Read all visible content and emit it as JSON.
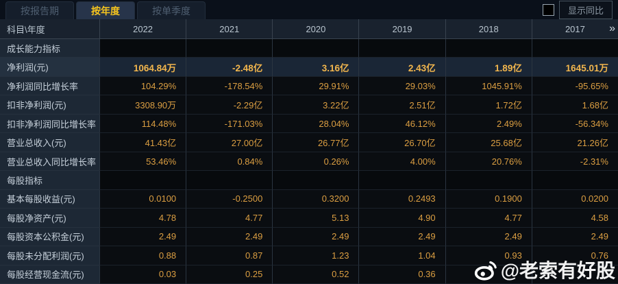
{
  "tabs": [
    {
      "label": "按报告期",
      "active": false
    },
    {
      "label": "按年度",
      "active": true
    },
    {
      "label": "按单季度",
      "active": false
    }
  ],
  "controls": {
    "show_yoy_label": "显示同比",
    "checkbox_checked": false
  },
  "table": {
    "corner_header": "科目\\年度",
    "year_columns": [
      "2022",
      "2021",
      "2020",
      "2019",
      "2018",
      "2017"
    ],
    "more_columns_icon": "»",
    "rows": [
      {
        "label": "成长能力指标",
        "type": "section",
        "values": [
          "",
          "",
          "",
          "",
          "",
          ""
        ]
      },
      {
        "label": "净利润(元)",
        "type": "highlight",
        "values": [
          "1064.84万",
          "-2.48亿",
          "3.16亿",
          "2.43亿",
          "1.89亿",
          "1645.01万"
        ]
      },
      {
        "label": "净利润同比增长率",
        "type": "data",
        "values": [
          "104.29%",
          "-178.54%",
          "29.91%",
          "29.03%",
          "1045.91%",
          "-95.65%"
        ]
      },
      {
        "label": "扣非净利润(元)",
        "type": "data",
        "values": [
          "3308.90万",
          "-2.29亿",
          "3.22亿",
          "2.51亿",
          "1.72亿",
          "1.68亿"
        ]
      },
      {
        "label": "扣非净利润同比增长率",
        "type": "data",
        "values": [
          "114.48%",
          "-171.03%",
          "28.04%",
          "46.12%",
          "2.49%",
          "-56.34%"
        ]
      },
      {
        "label": "营业总收入(元)",
        "type": "data",
        "values": [
          "41.43亿",
          "27.00亿",
          "26.77亿",
          "26.70亿",
          "25.68亿",
          "21.26亿"
        ]
      },
      {
        "label": "营业总收入同比增长率",
        "type": "data",
        "values": [
          "53.46%",
          "0.84%",
          "0.26%",
          "4.00%",
          "20.76%",
          "-2.31%"
        ]
      },
      {
        "label": "每股指标",
        "type": "section",
        "values": [
          "",
          "",
          "",
          "",
          "",
          ""
        ]
      },
      {
        "label": "基本每股收益(元)",
        "type": "data",
        "values": [
          "0.0100",
          "-0.2500",
          "0.3200",
          "0.2493",
          "0.1900",
          "0.0200"
        ]
      },
      {
        "label": "每股净资产(元)",
        "type": "data",
        "values": [
          "4.78",
          "4.77",
          "5.13",
          "4.90",
          "4.77",
          "4.58"
        ]
      },
      {
        "label": "每股资本公积金(元)",
        "type": "data",
        "values": [
          "2.49",
          "2.49",
          "2.49",
          "2.49",
          "2.49",
          "2.49"
        ]
      },
      {
        "label": "每股未分配利润(元)",
        "type": "data",
        "values": [
          "0.88",
          "0.87",
          "1.23",
          "1.04",
          "0.93",
          "0.76"
        ]
      },
      {
        "label": "每股经营现金流(元)",
        "type": "data",
        "values": [
          "0.03",
          "0.25",
          "0.52",
          "0.36",
          "",
          ""
        ]
      }
    ]
  },
  "watermark": {
    "text": "@老索有好股",
    "icon": "weibo-icon"
  },
  "colors": {
    "accent_gold": "#f6c51e",
    "value_orange": "#dc9f42",
    "highlight_value": "#f2b64d",
    "label_text": "#c6d0da",
    "panel_navy": "#1d2835",
    "highlight_row_bg": "#1a2636",
    "cell_black": "#0a0d11",
    "watermark_white": "#ffffff"
  }
}
